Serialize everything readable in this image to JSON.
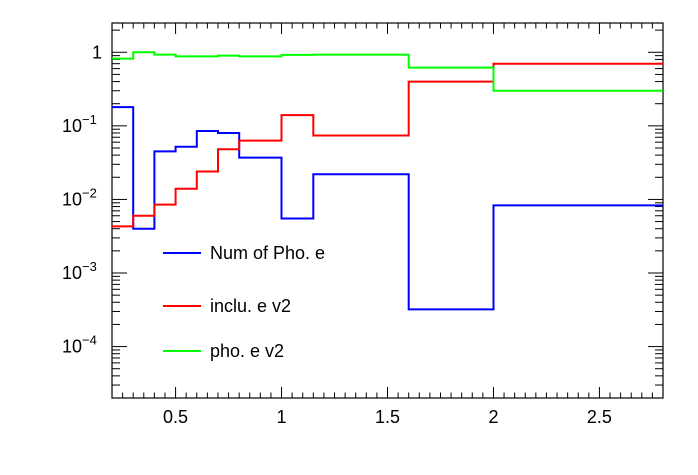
{
  "chart_data": {
    "type": "line",
    "style": "step-histogram",
    "xlabel": "",
    "ylabel": "",
    "xlim": [
      0.2,
      2.8
    ],
    "ylim": [
      2e-05,
      2.5
    ],
    "yscale": "log",
    "grid": false,
    "legend_position": "center-left",
    "x_ticks": [
      {
        "value": 0.5,
        "label": "0.5"
      },
      {
        "value": 1,
        "label": "1"
      },
      {
        "value": 1.5,
        "label": "1.5"
      },
      {
        "value": 2,
        "label": "2"
      },
      {
        "value": 2.5,
        "label": "2.5"
      }
    ],
    "y_ticks": [
      {
        "value": 1,
        "base": "1",
        "exp": ""
      },
      {
        "value": 0.1,
        "base": "10",
        "exp": "−1"
      },
      {
        "value": 0.01,
        "base": "10",
        "exp": "−2"
      },
      {
        "value": 0.001,
        "base": "10",
        "exp": "−3"
      },
      {
        "value": 0.0001,
        "base": "10",
        "exp": "−4"
      }
    ],
    "bin_edges": [
      0.2,
      0.3,
      0.4,
      0.5,
      0.6,
      0.7,
      0.8,
      1.0,
      1.15,
      1.6,
      2.0,
      2.8
    ],
    "series": [
      {
        "name": "Num of Pho. e",
        "color": "#0000ff",
        "values": [
          0.18,
          0.004,
          0.045,
          0.052,
          0.085,
          0.08,
          0.037,
          0.0055,
          0.022,
          0.00032,
          0.0083
        ]
      },
      {
        "name": "inclu. e v2",
        "color": "#ff0000",
        "values": [
          0.0043,
          0.006,
          0.0085,
          0.014,
          0.024,
          0.048,
          0.063,
          0.14,
          0.074,
          0.4,
          0.7
        ]
      },
      {
        "name": "pho. e v2",
        "color": "#00ff00",
        "values": [
          0.82,
          1.0,
          0.93,
          0.88,
          0.88,
          0.9,
          0.88,
          0.92,
          0.93,
          0.62,
          0.3
        ]
      }
    ]
  }
}
